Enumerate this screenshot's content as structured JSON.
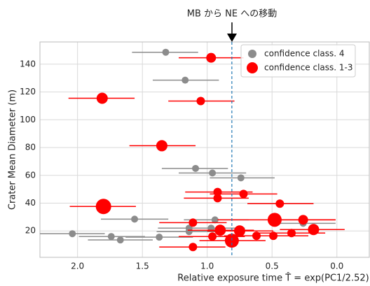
{
  "chart_data": {
    "type": "scatter",
    "annotation": "MB から NE への移動",
    "xlabel": "Relative exposure time T̂ = exp(PC1/2.52)",
    "ylabel": "Crater Mean Diameter (m)",
    "xlim": [
      2.29,
      -0.25
    ],
    "ylim": [
      1,
      156
    ],
    "xticks": [
      {
        "value": 2.0,
        "label": "2.0"
      },
      {
        "value": 1.5,
        "label": "1.5"
      },
      {
        "value": 1.0,
        "label": "1.0"
      },
      {
        "value": 0.5,
        "label": "0.5"
      },
      {
        "value": 0.0,
        "label": "0.0"
      }
    ],
    "yticks": [
      20,
      40,
      60,
      80,
      100,
      120,
      140
    ],
    "grid": true,
    "legend": "upper right",
    "vline": 0.81,
    "vline_color": "#1f77b4",
    "series": [
      {
        "name": "confidence class. 4",
        "color": "#8c8c8c",
        "x": [
          1.32,
          1.17,
          1.09,
          0.96,
          0.74,
          1.56,
          0.94,
          2.04,
          1.74,
          1.67,
          1.37,
          1.14,
          1.14,
          0.97,
          0.26
        ],
        "y": [
          148.6,
          128.5,
          65,
          61.7,
          58.2,
          28.5,
          28,
          18,
          16,
          13.5,
          15.5,
          22,
          19.5,
          22,
          25.5
        ],
        "x_lo": [
          1.58,
          1.42,
          1.35,
          1.22,
          0.98,
          1.82,
          1.18,
          2.29,
          1.99,
          1.92,
          1.63,
          1.38,
          1.39,
          1.22,
          0.52
        ],
        "x_hi": [
          1.07,
          0.91,
          0.84,
          0.7,
          0.48,
          1.3,
          0.68,
          1.79,
          1.48,
          1.42,
          1.11,
          0.88,
          0.89,
          0.71,
          0.01
        ],
        "sizes": [
          5,
          5,
          5,
          5,
          5,
          5,
          5,
          5,
          5,
          5,
          5,
          5,
          5,
          5,
          5
        ]
      },
      {
        "name": "confidence class. 1-3",
        "color": "#ff0000",
        "x": [
          0.97,
          1.81,
          1.05,
          1.35,
          0.92,
          0.72,
          0.92,
          0.44,
          1.8,
          1.11,
          0.48,
          0.26,
          0.18,
          0.9,
          0.75,
          0.96,
          0.81,
          0.62,
          0.49,
          0.35,
          1.11
        ],
        "y": [
          144.6,
          115.5,
          113.5,
          81.3,
          48,
          46.6,
          43.6,
          39.6,
          37.6,
          26,
          28,
          28,
          21,
          20.5,
          20,
          16,
          13,
          16.5,
          16.5,
          18.5,
          8.4
        ],
        "x_lo": [
          1.22,
          2.07,
          1.3,
          1.6,
          1.17,
          0.98,
          1.18,
          0.69,
          2.06,
          1.37,
          0.92,
          0.52,
          0.44,
          1.15,
          1.0,
          1.22,
          1.06,
          0.87,
          0.74,
          0.6,
          1.37
        ],
        "x_hi": [
          0.72,
          1.56,
          0.79,
          1.09,
          0.65,
          0.46,
          0.68,
          0.18,
          1.55,
          0.85,
          0.01,
          0.01,
          -0.06,
          0.64,
          0.49,
          0.71,
          0.55,
          0.36,
          0.22,
          0.09,
          0.86
        ],
        "sizes": [
          7,
          8,
          6,
          8,
          6,
          6,
          6,
          6,
          11,
          6,
          10,
          7,
          8,
          8,
          8,
          6,
          10,
          6,
          6,
          6,
          6
        ]
      }
    ]
  }
}
